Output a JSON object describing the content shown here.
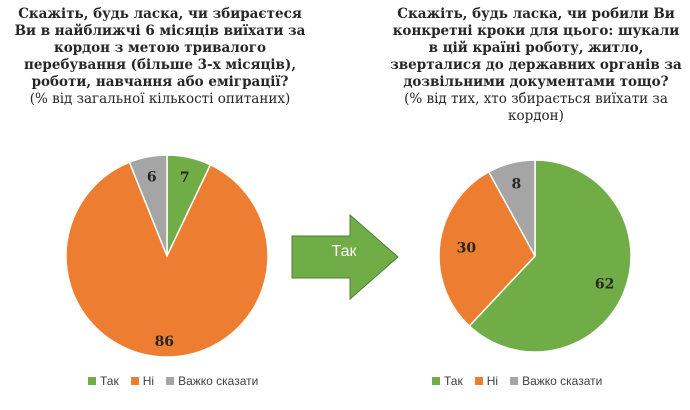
{
  "left": {
    "title_lines": [
      "Скажіть, будь ласка, чи збираєтеся",
      "Ви в найближчі 6 місяців виїхати за",
      "кордон з метою тривалого",
      "перебування (більше 3-х місяців),",
      "роботи, навчання або еміграції?"
    ],
    "subtitle": "(% від загальної кількості опитаних)"
  },
  "right": {
    "title_lines": [
      "Скажіть, будь ласка, чи робили Ви",
      "конкретні кроки для цього: шукали",
      "в цій країні роботу, житло,",
      "зверталися до державних органів за",
      "дозвільними документами тощо?"
    ],
    "subtitle_lines": [
      "(% від тих, хто збирається виїхати за",
      "кордон)"
    ]
  },
  "arrow": {
    "label": "Так",
    "color": "#70ad47"
  },
  "legend": [
    {
      "label": "Так",
      "color": "#70ad47"
    },
    {
      "label": "Ні",
      "color": "#ed7d31"
    },
    {
      "label": "Важко сказати",
      "color": "#a5a5a5"
    }
  ],
  "chart_data": [
    {
      "type": "pie",
      "categories": [
        "Так",
        "Ні",
        "Важко сказати"
      ],
      "values": [
        7,
        86,
        6
      ],
      "colors": [
        "#70ad47",
        "#ed7d31",
        "#a5a5a5"
      ]
    },
    {
      "type": "pie",
      "categories": [
        "Так",
        "Ні",
        "Важко сказати"
      ],
      "values": [
        62,
        30,
        8
      ],
      "colors": [
        "#70ad47",
        "#ed7d31",
        "#a5a5a5"
      ]
    }
  ]
}
